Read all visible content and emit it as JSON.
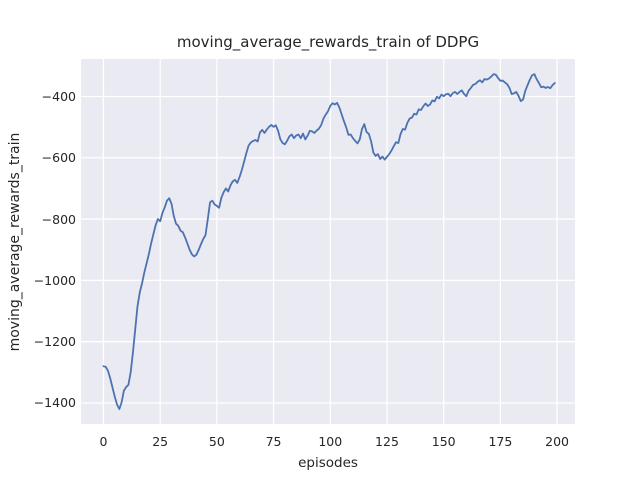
{
  "chart_data": {
    "type": "line",
    "title": "moving_average_rewards_train of DDPG",
    "xlabel": "episodes",
    "ylabel": "moving_average_rewards_train",
    "grid": true,
    "legend_position": "none",
    "xticks": [
      0,
      25,
      50,
      75,
      100,
      125,
      150,
      175,
      200
    ],
    "yticks": [
      -400,
      -600,
      -800,
      -1000,
      -1200,
      -1400
    ],
    "xlim": [
      -9.9,
      207.9
    ],
    "ylim": [
      -1468.6,
      -277.7
    ],
    "x_start": 0,
    "x_step": 1,
    "style": {
      "line_color": "#4c72b0",
      "axes_background": "#eaeaf2",
      "grid_color": "#ffffff",
      "text_color": "#262626",
      "figure_background": "#ffffff"
    },
    "series": [
      {
        "name": "moving_average_rewards_train",
        "values": [
          -1280,
          -1282,
          -1295,
          -1320,
          -1350,
          -1380,
          -1405,
          -1420,
          -1398,
          -1360,
          -1348,
          -1341,
          -1300,
          -1235,
          -1160,
          -1085,
          -1040,
          -1010,
          -975,
          -945,
          -915,
          -880,
          -850,
          -820,
          -800,
          -807,
          -780,
          -762,
          -740,
          -732,
          -750,
          -790,
          -815,
          -822,
          -838,
          -843,
          -860,
          -880,
          -900,
          -915,
          -922,
          -916,
          -900,
          -882,
          -865,
          -852,
          -800,
          -745,
          -740,
          -752,
          -757,
          -763,
          -730,
          -712,
          -700,
          -710,
          -690,
          -677,
          -672,
          -682,
          -663,
          -640,
          -613,
          -585,
          -560,
          -550,
          -545,
          -542,
          -547,
          -517,
          -509,
          -519,
          -508,
          -499,
          -493,
          -499,
          -494,
          -512,
          -540,
          -552,
          -556,
          -544,
          -530,
          -524,
          -536,
          -527,
          -524,
          -536,
          -521,
          -540,
          -528,
          -512,
          -514,
          -519,
          -511,
          -505,
          -493,
          -472,
          -459,
          -448,
          -431,
          -422,
          -426,
          -421,
          -436,
          -458,
          -480,
          -500,
          -525,
          -524,
          -536,
          -545,
          -553,
          -540,
          -506,
          -490,
          -516,
          -522,
          -546,
          -583,
          -594,
          -588,
          -604,
          -596,
          -606,
          -597,
          -588,
          -576,
          -562,
          -549,
          -552,
          -522,
          -506,
          -508,
          -486,
          -472,
          -469,
          -456,
          -459,
          -442,
          -444,
          -432,
          -423,
          -431,
          -426,
          -413,
          -416,
          -401,
          -406,
          -394,
          -399,
          -393,
          -391,
          -399,
          -389,
          -385,
          -392,
          -385,
          -380,
          -392,
          -399,
          -381,
          -372,
          -362,
          -359,
          -352,
          -347,
          -354,
          -343,
          -345,
          -341,
          -335,
          -327,
          -329,
          -340,
          -349,
          -348,
          -354,
          -360,
          -372,
          -392,
          -390,
          -385,
          -398,
          -415,
          -410,
          -381,
          -363,
          -345,
          -331,
          -327,
          -344,
          -356,
          -370,
          -368,
          -372,
          -369,
          -373,
          -363,
          -356
        ]
      }
    ]
  }
}
